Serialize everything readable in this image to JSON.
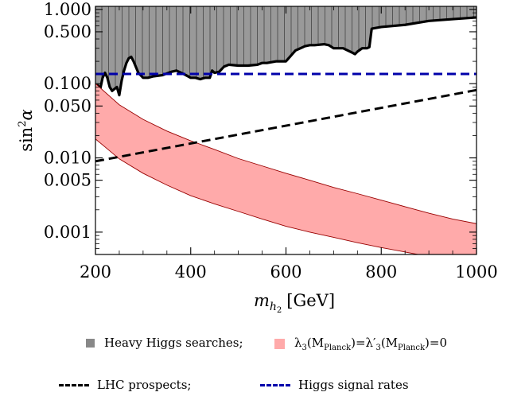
{
  "chart_data": {
    "type": "line",
    "xlim": [
      200,
      1000
    ],
    "ylim": [
      0.0005,
      1.1
    ],
    "yscale": "log",
    "x_ticks": [
      200,
      400,
      600,
      800,
      1000
    ],
    "x_tick_labels": [
      "200",
      "400",
      "600",
      "800",
      "1000"
    ],
    "y_ticks": [
      1.0,
      0.5,
      0.1,
      0.05,
      0.01,
      0.005,
      0.001
    ],
    "y_tick_labels": [
      "1.000",
      "0.500",
      "0.100",
      "0.050",
      "0.010",
      "0.005",
      "0.001"
    ],
    "xlabel_main": "m",
    "xlabel_sub1": "h",
    "xlabel_sub2": "2",
    "xlabel_unit": "[GeV]",
    "ylabel_main": "sin",
    "ylabel_sup": "2",
    "ylabel_greek": "α",
    "grid": false,
    "series": [
      {
        "name": "Heavy Higgs searches",
        "kind": "excluded-region-above",
        "color": "#999999",
        "edge_color": "#000000",
        "x": [
          200,
          205,
          210,
          215,
          220,
          225,
          230,
          235,
          240,
          245,
          250,
          255,
          260,
          265,
          270,
          275,
          280,
          290,
          300,
          310,
          320,
          340,
          360,
          370,
          380,
          390,
          400,
          410,
          420,
          430,
          440,
          445,
          450,
          460,
          470,
          480,
          500,
          520,
          540,
          550,
          560,
          580,
          600,
          620,
          640,
          650,
          660,
          680,
          690,
          700,
          720,
          740,
          745,
          750,
          760,
          770,
          775,
          780,
          800,
          850,
          900,
          950,
          1000
        ],
        "y": [
          0.09,
          0.095,
          0.085,
          0.12,
          0.14,
          0.12,
          0.09,
          0.08,
          0.085,
          0.09,
          0.07,
          0.11,
          0.15,
          0.19,
          0.22,
          0.23,
          0.2,
          0.14,
          0.12,
          0.12,
          0.125,
          0.13,
          0.145,
          0.15,
          0.14,
          0.13,
          0.12,
          0.12,
          0.115,
          0.12,
          0.12,
          0.15,
          0.14,
          0.145,
          0.17,
          0.18,
          0.175,
          0.175,
          0.18,
          0.19,
          0.19,
          0.2,
          0.2,
          0.28,
          0.32,
          0.33,
          0.33,
          0.34,
          0.33,
          0.3,
          0.3,
          0.26,
          0.25,
          0.27,
          0.3,
          0.3,
          0.31,
          0.55,
          0.58,
          0.62,
          0.7,
          0.74,
          0.78
        ]
      },
      {
        "name": "λ3(MPlanck)=λ'3(MPlanck)=0",
        "kind": "band",
        "color": "#ffaaaa",
        "edge_color": "#990000",
        "x": [
          200,
          250,
          300,
          350,
          400,
          450,
          500,
          550,
          600,
          650,
          700,
          750,
          800,
          850,
          900,
          950,
          1000
        ],
        "upper": [
          0.1,
          0.052,
          0.033,
          0.023,
          0.017,
          0.013,
          0.0098,
          0.0078,
          0.0062,
          0.005,
          0.004,
          0.0033,
          0.0027,
          0.0022,
          0.0018,
          0.0015,
          0.0013
        ],
        "lower": [
          0.018,
          0.0097,
          0.0062,
          0.0043,
          0.0031,
          0.0024,
          0.0019,
          0.0015,
          0.0012,
          0.001,
          0.00085,
          0.00072,
          0.00062,
          0.00054,
          0.00047,
          0.00042,
          0.00038
        ]
      },
      {
        "name": "LHC prospects",
        "kind": "dashed-line",
        "color": "#000000",
        "x": [
          200,
          1000
        ],
        "y": [
          0.009,
          0.082
        ]
      },
      {
        "name": "Higgs signal rates",
        "kind": "dashed-line",
        "color": "#0000aa",
        "x": [
          200,
          1000
        ],
        "y": [
          0.135,
          0.135
        ]
      }
    ]
  },
  "legend": {
    "heavy_higgs": "Heavy Higgs searches;",
    "lambda_band": {
      "l1": "λ",
      "l1_sub": "3",
      "l2": "(M",
      "l2_sub": "Planck",
      "l3": ")=λ′",
      "l3_sub": "3",
      "l4": "(M",
      "l4_sub": "Planck",
      "l5": ")=0"
    },
    "lhc": "LHC prospects;",
    "higgs_rates": "Higgs signal rates"
  },
  "colors": {
    "gray_fill": "#999999",
    "red_fill": "#ffaaaa",
    "red_edge": "#990000",
    "blue_dash": "#0000aa",
    "black": "#000000"
  }
}
